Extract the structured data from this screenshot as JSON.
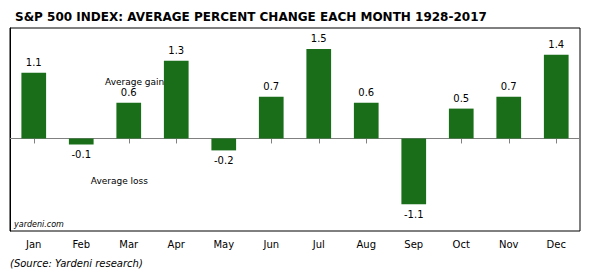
{
  "chart_data": {
    "type": "bar",
    "title": "S&P 500 INDEX: AVERAGE PERCENT CHANGE EACH MONTH 1928-2017",
    "categories": [
      "Jan",
      "Feb",
      "Mar",
      "Apr",
      "May",
      "Jun",
      "Jul",
      "Aug",
      "Sep",
      "Oct",
      "Nov",
      "Dec"
    ],
    "values": [
      1.1,
      -0.1,
      0.6,
      1.3,
      -0.2,
      0.7,
      1.5,
      0.6,
      -1.1,
      0.5,
      0.7,
      1.4
    ],
    "color": "#1a6e1a",
    "ylim": [
      -1.55,
      1.85
    ],
    "grid": false,
    "data_labels": true,
    "tick_labels": "x",
    "annotations": [
      "Average gain",
      "Average loss",
      "yardeni.com",
      "(Source: Yardeni research)"
    ]
  }
}
